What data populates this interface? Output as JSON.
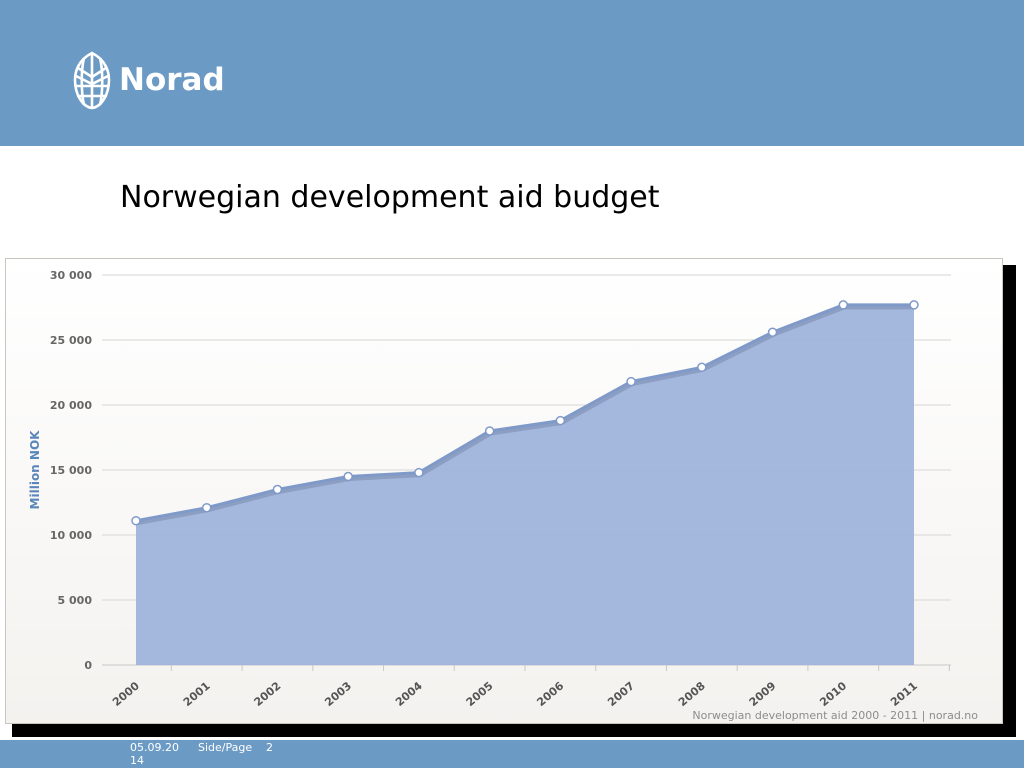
{
  "brand": {
    "name": "Norad",
    "colors": {
      "header_bg": "#6b9ac4",
      "area_fill": "#9fb4dc",
      "line": "#7f9ac9",
      "axis_label": "#5b86bb"
    }
  },
  "slide": {
    "title": "Norwegian development aid budget"
  },
  "chart_data": {
    "type": "area",
    "categories": [
      "2000",
      "2001",
      "2002",
      "2003",
      "2004",
      "2005",
      "2006",
      "2007",
      "2008",
      "2009",
      "2010",
      "2011"
    ],
    "series": [
      {
        "values": [
          11100,
          12100,
          13500,
          14500,
          14800,
          18000,
          18800,
          21800,
          22900,
          25600,
          27700,
          27700
        ]
      }
    ],
    "ylabel": "Million NOK",
    "xlabel": "",
    "ylim": [
      0,
      30000
    ],
    "yticks": [
      0,
      5000,
      10000,
      15000,
      20000,
      25000,
      30000
    ],
    "ytick_labels": [
      "0",
      "5 000",
      "10 000",
      "15 000",
      "20 000",
      "25 000",
      "30 000"
    ],
    "grid": true,
    "credit": "Norwegian development aid 2000 - 2011 | norad.no"
  },
  "footer": {
    "date_line1": "05.09.20",
    "date_line2": "14",
    "page_label": "Side/Page",
    "page_number": "2"
  }
}
